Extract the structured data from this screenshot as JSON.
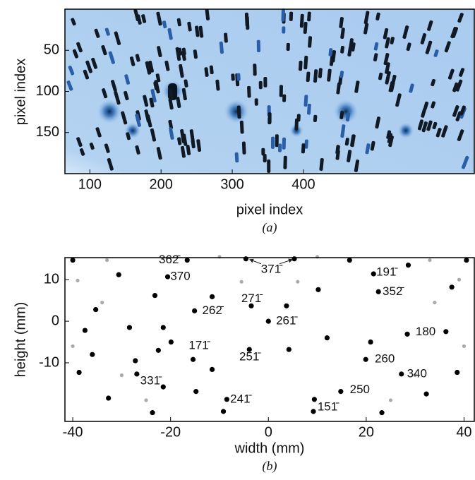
{
  "chart_data": [
    {
      "type": "image",
      "xlabel": "pixel index",
      "ylabel": "pixel index",
      "caption": "(a)",
      "xlim": [
        65,
        640
      ],
      "ylim": [
        0,
        200
      ],
      "y_inverted": true,
      "xticks": [
        100,
        200,
        300,
        400
      ],
      "yticks": [
        50,
        100,
        150
      ]
    },
    {
      "type": "scatter",
      "xlabel": "width (mm)",
      "ylabel": "height (mm)",
      "caption": "(b)",
      "xlim": [
        -41.6,
        42.1
      ],
      "ylim": [
        -24.1,
        15.3
      ],
      "xticks": [
        -40,
        -20,
        0,
        20,
        40
      ],
      "yticks": [
        -10,
        0,
        10
      ],
      "series": [
        {
          "color": "#000000",
          "x": [
            -16.6,
            -4.6,
            5.3,
            -20.6,
            -3.5,
            3.7,
            -15.1,
            0,
            -15.4,
            -3.9,
            4.2,
            -8.5,
            -26.9,
            21.5,
            22.5,
            28.4,
            19.9,
            27.2,
            14.8,
            9.2,
            -21.5,
            -22.5,
            -19.9,
            -28.4,
            -27.2,
            -9.2,
            -14.8,
            -21.5,
            -23.7,
            -32.7,
            -38.7,
            -36,
            -35.3,
            -37.5,
            -30.6,
            -23.2,
            -11.5,
            -11.5,
            10.2,
            16.6,
            23.2,
            32.3,
            36.3,
            37.5,
            38.6,
            20.9,
            12.0,
            28.6,
            -40,
            40.5,
            9.4
          ],
          "values": [
            14.7,
            15.0,
            15.0,
            10.7,
            3.7,
            3.7,
            2.5,
            0,
            -9.2,
            -6.8,
            -6.8,
            -18.8,
            -12.7,
            11.4,
            7.1,
            -3.1,
            -9.2,
            -12.7,
            -16.9,
            -21.7,
            -1.5,
            -7.0,
            -5.0,
            -1.5,
            -9.5,
            -21.7,
            -16.9,
            -15.8,
            -22.0,
            -18.5,
            -12.3,
            -8,
            2.8,
            -2.2,
            11.2,
            6.2,
            5.9,
            -11.6,
            7.6,
            14.7,
            -22.0,
            -17.5,
            -2.5,
            8.2,
            -12.3,
            -5.0,
            -4.0,
            13.5,
            14.7,
            14.7,
            -18.8
          ]
        },
        {
          "color": "#aaaaaa",
          "x": [
            -33,
            -39,
            -34,
            -40,
            -30,
            -10,
            10,
            33,
            39,
            34,
            40,
            30,
            -25,
            25,
            -5.5,
            6
          ],
          "values": [
            14.7,
            9.8,
            4.5,
            -6,
            -13,
            15.5,
            15.5,
            14.7,
            10,
            4.5,
            -6,
            -13,
            -19,
            -19,
            9.5,
            9.5
          ]
        }
      ],
      "annotations": [
        {
          "text": "362̄",
          "x": -16.6,
          "y": 14.7
        },
        {
          "text": "371̄",
          "x": 5.3,
          "y": 15.0
        },
        {
          "text": "370",
          "x": -20.6,
          "y": 10.7
        },
        {
          "text": "271̄",
          "x": -3.5,
          "y": 3.7
        },
        {
          "text": "262̄",
          "x": -15.1,
          "y": 2.5
        },
        {
          "text": "261̄",
          "x": 0,
          "y": 0,
          "color": "#e0261c"
        },
        {
          "text": "171̄",
          "x": -15.4,
          "y": -9.2
        },
        {
          "text": "251̄",
          "x": -3.9,
          "y": -6.8
        },
        {
          "text": "241̄",
          "x": -8.5,
          "y": -18.8
        },
        {
          "text": "331̄",
          "x": -26.9,
          "y": -12.7
        },
        {
          "text": "191̄",
          "x": 21.5,
          "y": 11.4
        },
        {
          "text": "352̄",
          "x": 22.5,
          "y": 7.1
        },
        {
          "text": "180",
          "x": 28.4,
          "y": -3.1
        },
        {
          "text": "260",
          "x": 19.9,
          "y": -9.2
        },
        {
          "text": "340",
          "x": 27.2,
          "y": -12.7
        },
        {
          "text": "250",
          "x": 14.8,
          "y": -16.9
        },
        {
          "text": "151̄",
          "x": 9.2,
          "y": -21.7
        }
      ]
    }
  ]
}
